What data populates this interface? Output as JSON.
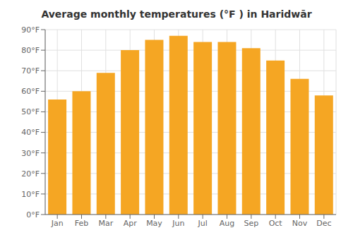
{
  "chart_data": {
    "type": "bar",
    "title": "Average monthly temperatures (°F ) in Haridwār",
    "categories": [
      "Jan",
      "Feb",
      "Mar",
      "Apr",
      "May",
      "Jun",
      "Jul",
      "Aug",
      "Sep",
      "Oct",
      "Nov",
      "Dec"
    ],
    "values": [
      56,
      60,
      69,
      80,
      85,
      87,
      84,
      84,
      81,
      75,
      66,
      58
    ],
    "color": "#F5A623",
    "ylim": [
      0,
      90
    ],
    "yticks": [
      {
        "value": 0,
        "label": "0°F"
      },
      {
        "value": 10,
        "label": "10°F"
      },
      {
        "value": 20,
        "label": "20°F"
      },
      {
        "value": 30,
        "label": "30°F"
      },
      {
        "value": 40,
        "label": "40°F"
      },
      {
        "value": 50,
        "label": "50°F"
      },
      {
        "value": 60,
        "label": "60°F"
      },
      {
        "value": 70,
        "label": "70°F"
      },
      {
        "value": 80,
        "label": "80°F"
      },
      {
        "value": 90,
        "label": "90°F"
      }
    ],
    "grid": true
  }
}
